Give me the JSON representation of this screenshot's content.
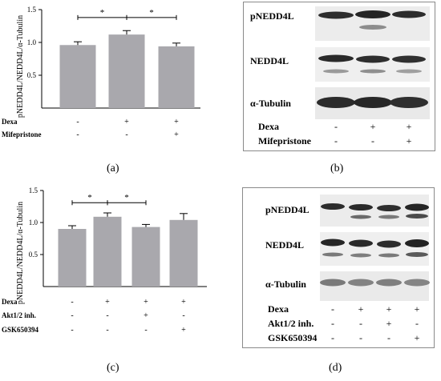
{
  "panels": {
    "a": {
      "label": "(a)",
      "ylabel": "pNEDD4L/NEDD4L/α-Tubulin",
      "rows": [
        {
          "name": "Dexa",
          "signs": [
            "-",
            "+",
            "+"
          ]
        },
        {
          "name": "Mifepristone",
          "signs": [
            "-",
            "-",
            "+"
          ]
        }
      ]
    },
    "b": {
      "label": "(b)",
      "bands": [
        "pNEDD4L",
        "NEDD4L",
        "α-Tubulin"
      ],
      "rows": [
        {
          "name": "Dexa",
          "signs": [
            "-",
            "+",
            "+"
          ]
        },
        {
          "name": "Mifepristone",
          "signs": [
            "-",
            "-",
            "+"
          ]
        }
      ]
    },
    "c": {
      "label": "(c)",
      "ylabel": "pNEDD4L/NEDD4L/α-Tubulin",
      "rows": [
        {
          "name": "Dexa",
          "signs": [
            "-",
            "+",
            "+",
            "+"
          ]
        },
        {
          "name": "Akt1/2 inh.",
          "signs": [
            "-",
            "-",
            "+",
            "-"
          ]
        },
        {
          "name": "GSK650394",
          "signs": [
            "-",
            "-",
            "-",
            "+"
          ]
        }
      ]
    },
    "d": {
      "label": "(d)",
      "bands": [
        "pNEDD4L",
        "NEDD4L",
        "α-Tubulin"
      ],
      "rows": [
        {
          "name": "Dexa",
          "signs": [
            "-",
            "+",
            "+",
            "+"
          ]
        },
        {
          "name": "Akt1/2 inh.",
          "signs": [
            "-",
            "-",
            "+",
            "-"
          ]
        },
        {
          "name": "GSK650394",
          "signs": [
            "-",
            "-",
            "-",
            "+"
          ]
        }
      ]
    }
  },
  "chart_data": [
    {
      "panel": "a",
      "type": "bar",
      "ylabel": "pNEDD4L/NEDD4L/α-Tubulin",
      "ylim": [
        0,
        1.5
      ],
      "yticks": [
        "0.5",
        "1.0",
        "1.5"
      ],
      "values": [
        0.96,
        1.12,
        0.94
      ],
      "errors": [
        0.05,
        0.06,
        0.05
      ],
      "bar_color": "#a9a8ad",
      "significance": [
        {
          "from": 0,
          "to": 1,
          "label": "*",
          "y": 1.38
        },
        {
          "from": 1,
          "to": 2,
          "label": "*",
          "y": 1.38
        }
      ]
    },
    {
      "panel": "c",
      "type": "bar",
      "ylabel": "pNEDD4L/NEDD4L/α-Tubulin",
      "ylim": [
        0,
        1.5
      ],
      "yticks": [
        "0.5",
        "1.0",
        "1.5"
      ],
      "values": [
        0.9,
        1.09,
        0.93,
        1.04
      ],
      "errors": [
        0.05,
        0.06,
        0.04,
        0.1
      ],
      "bar_color": "#a9a8ad",
      "significance": [
        {
          "from": 0,
          "to": 1,
          "label": "*",
          "y": 1.31
        },
        {
          "from": 1,
          "to": 2,
          "label": "*",
          "y": 1.31
        }
      ]
    }
  ]
}
